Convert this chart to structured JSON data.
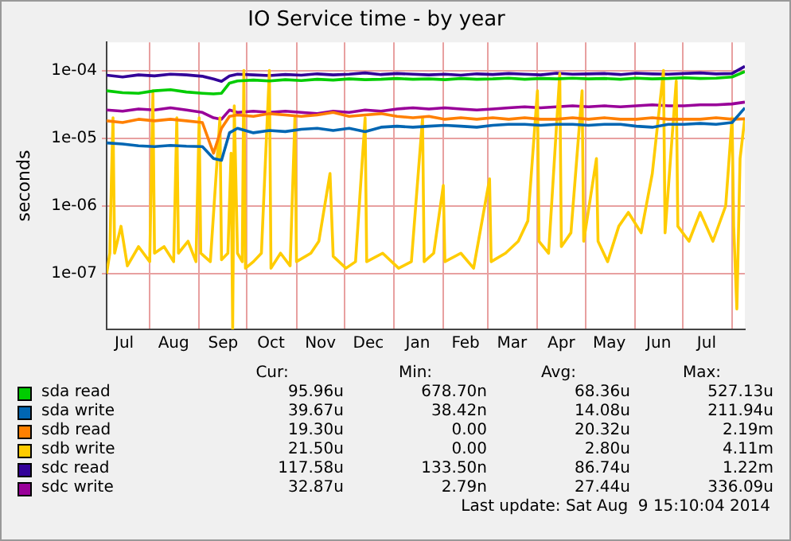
{
  "chart_data": {
    "type": "line",
    "title": "IO Service time - by year",
    "ylabel": "seconds",
    "log": "y",
    "grid": true,
    "legend": "bottom",
    "marker": "none",
    "line_style": "solid",
    "x": [
      "2013-07-05",
      "2013-07-15",
      "2013-07-25",
      "2013-08-04",
      "2013-08-14",
      "2013-08-24",
      "2013-09-03",
      "2013-09-10",
      "2013-09-15",
      "2013-09-20",
      "2013-09-25",
      "2013-10-05",
      "2013-10-15",
      "2013-10-25",
      "2013-11-04",
      "2013-11-14",
      "2013-11-24",
      "2013-12-04",
      "2013-12-14",
      "2013-12-24",
      "2014-01-03",
      "2014-01-13",
      "2014-01-23",
      "2014-02-02",
      "2014-02-12",
      "2014-02-22",
      "2014-03-04",
      "2014-03-14",
      "2014-03-24",
      "2014-04-03",
      "2014-04-13",
      "2014-04-23",
      "2014-05-03",
      "2014-05-13",
      "2014-05-23",
      "2014-06-02",
      "2014-06-12",
      "2014-06-22",
      "2014-07-02",
      "2014-07-12",
      "2014-07-22",
      "2014-08-01",
      "2014-08-09"
    ],
    "xlim": [
      "2013-07-05",
      "2014-08-09"
    ],
    "xticks": [
      {
        "value": "2013-07-16",
        "label": "Jul"
      },
      {
        "value": "2013-08-01",
        "label": null
      },
      {
        "value": "2013-08-16",
        "label": "Aug"
      },
      {
        "value": "2013-09-01",
        "label": null
      },
      {
        "value": "2013-09-16",
        "label": "Sep"
      },
      {
        "value": "2013-10-01",
        "label": null
      },
      {
        "value": "2013-10-16",
        "label": "Oct"
      },
      {
        "value": "2013-11-01",
        "label": null
      },
      {
        "value": "2013-11-16",
        "label": "Nov"
      },
      {
        "value": "2013-12-01",
        "label": null
      },
      {
        "value": "2013-12-16",
        "label": "Dec"
      },
      {
        "value": "2014-01-01",
        "label": null
      },
      {
        "value": "2014-01-16",
        "label": "Jan"
      },
      {
        "value": "2014-02-01",
        "label": null
      },
      {
        "value": "2014-02-15",
        "label": "Feb"
      },
      {
        "value": "2014-03-01",
        "label": null
      },
      {
        "value": "2014-03-16",
        "label": "Mar"
      },
      {
        "value": "2014-04-01",
        "label": null
      },
      {
        "value": "2014-04-16",
        "label": "Apr"
      },
      {
        "value": "2014-05-01",
        "label": null
      },
      {
        "value": "2014-05-16",
        "label": "May"
      },
      {
        "value": "2014-06-01",
        "label": null
      },
      {
        "value": "2014-06-16",
        "label": "Jun"
      },
      {
        "value": "2014-07-01",
        "label": null
      },
      {
        "value": "2014-07-16",
        "label": "Jul"
      },
      {
        "value": "2014-08-01",
        "label": null
      }
    ],
    "ylim": [
      1.5e-08,
      0.00026
    ],
    "yticks": [
      {
        "value": 1e-07,
        "label": "1e-07"
      },
      {
        "value": 1e-06,
        "label": "1e-06"
      },
      {
        "value": 1e-05,
        "label": "1e-05"
      },
      {
        "value": 0.0001,
        "label": "1e-04"
      }
    ],
    "series": [
      {
        "name": "sda read",
        "color": "#00cc00",
        "values": [
          5e-05,
          4.7e-05,
          4.6e-05,
          5e-05,
          5.2e-05,
          4.8e-05,
          4.6e-05,
          4.5e-05,
          4.6e-05,
          6.5e-05,
          7e-05,
          7.2e-05,
          7e-05,
          7.3e-05,
          7.1e-05,
          7.4e-05,
          7.2e-05,
          7.5e-05,
          7.3e-05,
          7.4e-05,
          7.6e-05,
          7.4e-05,
          7.5e-05,
          7.3e-05,
          7.6e-05,
          7.4e-05,
          7.5e-05,
          7.7e-05,
          7.4e-05,
          7.6e-05,
          7.5e-05,
          7.7e-05,
          7.5e-05,
          7.6e-05,
          7.4e-05,
          7.7e-05,
          7.5e-05,
          7.6e-05,
          7.8e-05,
          7.6e-05,
          7.7e-05,
          8e-05,
          9.6e-05
        ]
      },
      {
        "name": "sda write",
        "color": "#0066b3",
        "values": [
          8.5e-06,
          8.2e-06,
          7.7e-06,
          7.5e-06,
          7.8e-06,
          7.6e-06,
          7.5e-06,
          5e-06,
          4.7e-06,
          1.2e-05,
          1.4e-05,
          1.2e-05,
          1.3e-05,
          1.25e-05,
          1.35e-05,
          1.4e-05,
          1.3e-05,
          1.4e-05,
          1.25e-05,
          1.45e-05,
          1.5e-05,
          1.45e-05,
          1.5e-05,
          1.55e-05,
          1.5e-05,
          1.45e-05,
          1.55e-05,
          1.6e-05,
          1.6e-05,
          1.55e-05,
          1.6e-05,
          1.6e-05,
          1.55e-05,
          1.6e-05,
          1.6e-05,
          1.5e-05,
          1.45e-05,
          1.6e-05,
          1.6e-05,
          1.65e-05,
          1.6e-05,
          1.7e-05,
          2.8e-05
        ]
      },
      {
        "name": "sdb read",
        "color": "#ff8000",
        "values": [
          1.8e-05,
          1.7e-05,
          1.9e-05,
          1.8e-05,
          1.9e-05,
          1.8e-05,
          1.7e-05,
          6e-06,
          1.4e-05,
          2.1e-05,
          2.2e-05,
          2.1e-05,
          2.3e-05,
          2.2e-05,
          2.1e-05,
          2.2e-05,
          2.4e-05,
          2.1e-05,
          2.2e-05,
          2.3e-05,
          2.1e-05,
          2e-05,
          2.1e-05,
          1.9e-05,
          2e-05,
          1.9e-05,
          2e-05,
          1.9e-05,
          2e-05,
          1.9e-05,
          1.9e-05,
          2e-05,
          1.9e-05,
          2e-05,
          1.9e-05,
          1.9e-05,
          2e-05,
          1.9e-05,
          1.9e-05,
          1.9e-05,
          2e-05,
          1.9e-05,
          1.93e-05
        ]
      },
      {
        "name": "sdb write",
        "color": "#ffcc00",
        "x": [
          "2013-07-05",
          "2013-07-07",
          "2013-07-08",
          "2013-07-09",
          "2013-07-10",
          "2013-07-14",
          "2013-07-18",
          "2013-07-25",
          "2013-08-01",
          "2013-08-03",
          "2013-08-04",
          "2013-08-10",
          "2013-08-16",
          "2013-08-18",
          "2013-08-19",
          "2013-08-25",
          "2013-08-30",
          "2013-09-01",
          "2013-09-02",
          "2013-09-08",
          "2013-09-14",
          "2013-09-15",
          "2013-09-19",
          "2013-09-21",
          "2013-09-22",
          "2013-09-23",
          "2013-09-25",
          "2013-09-28",
          "2013-09-29",
          "2013-09-30",
          "2013-10-05",
          "2013-10-10",
          "2013-10-15",
          "2013-10-16",
          "2013-10-22",
          "2013-10-28",
          "2013-10-31",
          "2013-11-01",
          "2013-11-10",
          "2013-11-15",
          "2013-11-22",
          "2013-11-24",
          "2013-12-02",
          "2013-12-08",
          "2013-12-14",
          "2013-12-15",
          "2013-12-25",
          "2014-01-04",
          "2014-01-12",
          "2014-01-19",
          "2014-01-20",
          "2014-01-26",
          "2014-02-01",
          "2014-02-02",
          "2014-02-12",
          "2014-02-20",
          "2014-03-02",
          "2014-03-03",
          "2014-03-12",
          "2014-03-20",
          "2014-03-26",
          "2014-04-01",
          "2014-04-02",
          "2014-04-08",
          "2014-04-15",
          "2014-04-16",
          "2014-04-22",
          "2014-04-29",
          "2014-04-30",
          "2014-05-08",
          "2014-05-09",
          "2014-05-15",
          "2014-05-22",
          "2014-05-28",
          "2014-06-05",
          "2014-06-12",
          "2014-06-19",
          "2014-06-20",
          "2014-06-27",
          "2014-06-28",
          "2014-07-05",
          "2014-07-12",
          "2014-07-20",
          "2014-07-28",
          "2014-08-01",
          "2014-08-02",
          "2014-08-04",
          "2014-08-06",
          "2014-08-09"
        ],
        "values": [
          1e-07,
          2e-07,
          2.5e-06,
          2e-05,
          2e-07,
          5e-07,
          1.3e-07,
          2.5e-07,
          1.5e-07,
          5e-05,
          2e-07,
          2.5e-07,
          1.5e-07,
          2e-05,
          2e-07,
          3e-07,
          1.5e-07,
          2e-05,
          2e-07,
          1.5e-07,
          2e-05,
          1.6e-07,
          2e-07,
          6e-06,
          1.5e-08,
          3e-05,
          2e-07,
          1.5e-07,
          0.0001,
          1.2e-07,
          1.5e-07,
          2e-07,
          0.0001,
          1.2e-07,
          2e-07,
          1.3e-07,
          2e-05,
          1.5e-07,
          2e-07,
          3e-07,
          3e-06,
          1.8e-07,
          1.2e-07,
          1.5e-07,
          2e-05,
          1.5e-07,
          2e-07,
          1.2e-07,
          1.5e-07,
          2e-05,
          1.5e-07,
          2e-07,
          2e-06,
          1.5e-07,
          2e-07,
          1.2e-07,
          2.5e-06,
          1.5e-07,
          2e-07,
          3e-07,
          6e-07,
          5e-05,
          3e-07,
          2e-07,
          9e-05,
          2.5e-07,
          4e-07,
          5e-05,
          3e-07,
          5e-06,
          3e-07,
          1.5e-07,
          5e-07,
          8e-07,
          4e-07,
          3e-06,
          0.0001,
          4e-07,
          7e-05,
          5e-07,
          3e-07,
          8e-07,
          3e-07,
          1e-06,
          2e-05,
          5e-07,
          3e-08,
          5e-06,
          2e-05
        ]
      },
      {
        "name": "sdc read",
        "color": "#330099",
        "values": [
          8.5e-05,
          8e-05,
          8.6e-05,
          8.3e-05,
          8.8e-05,
          8.6e-05,
          8.2e-05,
          7.5e-05,
          6.9e-05,
          8.3e-05,
          8.8e-05,
          8.6e-05,
          8.4e-05,
          8.7e-05,
          8.5e-05,
          8.9e-05,
          8.6e-05,
          8.8e-05,
          9.2e-05,
          8.7e-05,
          9e-05,
          8.8e-05,
          8.6e-05,
          8.8e-05,
          8.5e-05,
          8.9e-05,
          8.7e-05,
          9e-05,
          8.8e-05,
          8.6e-05,
          9.1e-05,
          8.8e-05,
          8.9e-05,
          9e-05,
          8.7e-05,
          9.1e-05,
          8.9e-05,
          8.8e-05,
          9e-05,
          9.2e-05,
          8.9e-05,
          9e-05,
          0.000115
        ]
      },
      {
        "name": "sdc write",
        "color": "#990099",
        "values": [
          2.6e-05,
          2.5e-05,
          2.7e-05,
          2.6e-05,
          2.8e-05,
          2.6e-05,
          2.4e-05,
          2e-05,
          1.9e-05,
          2.6e-05,
          2.4e-05,
          2.5e-05,
          2.4e-05,
          2.5e-05,
          2.4e-05,
          2.3e-05,
          2.5e-05,
          2.4e-05,
          2.6e-05,
          2.5e-05,
          2.7e-05,
          2.8e-05,
          2.7e-05,
          2.8e-05,
          2.7e-05,
          2.6e-05,
          2.7e-05,
          2.8e-05,
          2.9e-05,
          2.8e-05,
          2.9e-05,
          3e-05,
          2.9e-05,
          3e-05,
          2.9e-05,
          3e-05,
          3.1e-05,
          3e-05,
          3e-05,
          3.1e-05,
          3.1e-05,
          3.2e-05,
          3.4e-05
        ]
      }
    ],
    "annotations": [
      "Cur:",
      "Min:",
      "Avg:",
      "Max:",
      "95.96u",
      "678.70n",
      "68.36u",
      "527.13u",
      "39.67u",
      "38.42n",
      "14.08u",
      "211.94u",
      "19.30u",
      "0.00",
      "20.32u",
      "2.19m",
      "21.50u",
      "0.00",
      "2.80u",
      "4.11m",
      "117.58u",
      "133.50n",
      "86.74u",
      "1.22m",
      "32.87u",
      "2.79n",
      "27.44u",
      "336.09u",
      "Last update: Sat Aug  9 15:10:04 2014"
    ]
  }
}
